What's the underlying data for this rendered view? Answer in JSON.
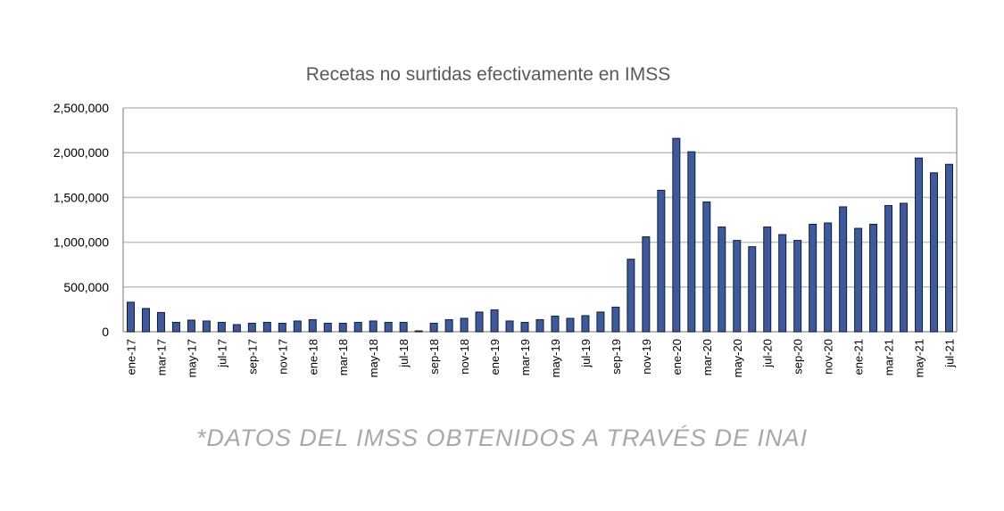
{
  "chart_data": {
    "type": "bar",
    "title": "Recetas no surtidas efectivamente en IMSS",
    "xlabel": "",
    "ylabel": "",
    "ylim": [
      0,
      2500000
    ],
    "yticks": [
      0,
      500000,
      1000000,
      1500000,
      2000000,
      2500000
    ],
    "ytick_labels": [
      "0",
      "500,000",
      "1,000,000",
      "1,500,000",
      "2,000,000",
      "2,500,000"
    ],
    "grid": true,
    "legend": "none",
    "bar_color": "#3e5a9a",
    "categories": [
      "ene-17",
      "feb-17",
      "mar-17",
      "abr-17",
      "may-17",
      "jun-17",
      "jul-17",
      "ago-17",
      "sep-17",
      "oct-17",
      "nov-17",
      "dic-17",
      "ene-18",
      "feb-18",
      "mar-18",
      "abr-18",
      "may-18",
      "jun-18",
      "jul-18",
      "ago-18",
      "sep-18",
      "oct-18",
      "nov-18",
      "dic-18",
      "ene-19",
      "feb-19",
      "mar-19",
      "abr-19",
      "may-19",
      "jun-19",
      "jul-19",
      "ago-19",
      "sep-19",
      "oct-19",
      "nov-19",
      "dic-19",
      "ene-20",
      "feb-20",
      "mar-20",
      "abr-20",
      "may-20",
      "jun-20",
      "jul-20",
      "ago-20",
      "sep-20",
      "oct-20",
      "nov-20",
      "dic-20",
      "ene-21",
      "feb-21",
      "mar-21",
      "abr-21",
      "may-21",
      "jun-21",
      "jul-21"
    ],
    "x_tick_labels": [
      "ene-17",
      "mar-17",
      "may-17",
      "jul-17",
      "sep-17",
      "nov-17",
      "ene-18",
      "mar-18",
      "may-18",
      "jul-18",
      "sep-18",
      "nov-18",
      "ene-19",
      "mar-19",
      "may-19",
      "jul-19",
      "sep-19",
      "nov-19",
      "ene-20",
      "mar-20",
      "may-20",
      "jul-20",
      "sep-20",
      "nov-20",
      "ene-21",
      "mar-21",
      "may-21",
      "jul-21"
    ],
    "values": [
      330000,
      260000,
      215000,
      105000,
      130000,
      120000,
      105000,
      80000,
      95000,
      105000,
      95000,
      120000,
      135000,
      95000,
      95000,
      105000,
      120000,
      105000,
      105000,
      10000,
      95000,
      135000,
      150000,
      220000,
      245000,
      120000,
      105000,
      135000,
      175000,
      150000,
      180000,
      220000,
      275000,
      810000,
      1060000,
      1580000,
      2160000,
      2010000,
      1450000,
      1170000,
      1020000,
      950000,
      1170000,
      1085000,
      1020000,
      1200000,
      1215000,
      1395000,
      1155000,
      1200000,
      1410000,
      1435000,
      1940000,
      1775000,
      1870000
    ]
  },
  "footnote": "*DATOS DEL IMSS OBTENIDOS A TRAVÉS DE INAI"
}
